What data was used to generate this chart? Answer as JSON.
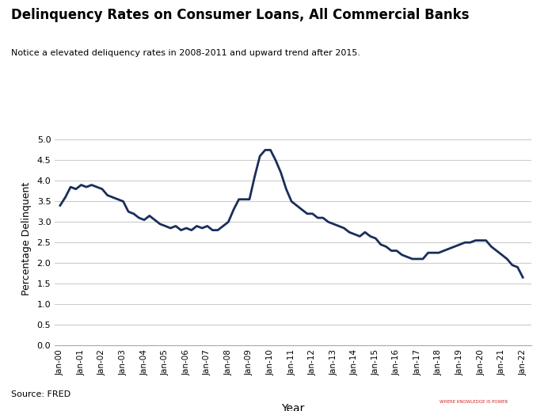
{
  "title": "Delinquency Rates on Consumer Loans, All Commercial Banks",
  "subtitle": "Notice a elevated deliquency rates in 2008-2011 and upward trend after 2015.",
  "xlabel": "Year",
  "ylabel": "Percentage Delinquent",
  "source": "Source: FRED",
  "line_color": "#1a2e5a",
  "line_width": 2.0,
  "background_color": "#ffffff",
  "plot_bg_color": "#ffffff",
  "ylim": [
    0,
    5.2
  ],
  "yticks": [
    0,
    0.5,
    1,
    1.5,
    2,
    2.5,
    3,
    3.5,
    4,
    4.5,
    5
  ],
  "xtick_labels": [
    "Jan-00",
    "Jan-01",
    "Jan-02",
    "Jan-03",
    "Jan-04",
    "Jan-05",
    "Jan-06",
    "Jan-07",
    "Jan-08",
    "Jan-09",
    "Jan-10",
    "Jan-11",
    "Jan-12",
    "Jan-13",
    "Jan-14",
    "Jan-15",
    "Jan-16",
    "Jan-17",
    "Jan-18",
    "Jan-19",
    "Jan-20",
    "Jan-21",
    "Jan-22"
  ],
  "data": {
    "dates": [
      "2000-01-01",
      "2000-04-01",
      "2000-07-01",
      "2000-10-01",
      "2001-01-01",
      "2001-04-01",
      "2001-07-01",
      "2001-10-01",
      "2002-01-01",
      "2002-04-01",
      "2002-07-01",
      "2002-10-01",
      "2003-01-01",
      "2003-04-01",
      "2003-07-01",
      "2003-10-01",
      "2004-01-01",
      "2004-04-01",
      "2004-07-01",
      "2004-10-01",
      "2005-01-01",
      "2005-04-01",
      "2005-07-01",
      "2005-10-01",
      "2006-01-01",
      "2006-04-01",
      "2006-07-01",
      "2006-10-01",
      "2007-01-01",
      "2007-04-01",
      "2007-07-01",
      "2007-10-01",
      "2008-01-01",
      "2008-04-01",
      "2008-07-01",
      "2008-10-01",
      "2009-01-01",
      "2009-04-01",
      "2009-07-01",
      "2009-10-01",
      "2010-01-01",
      "2010-04-01",
      "2010-07-01",
      "2010-10-01",
      "2011-01-01",
      "2011-04-01",
      "2011-07-01",
      "2011-10-01",
      "2012-01-01",
      "2012-04-01",
      "2012-07-01",
      "2012-10-01",
      "2013-01-01",
      "2013-04-01",
      "2013-07-01",
      "2013-10-01",
      "2014-01-01",
      "2014-04-01",
      "2014-07-01",
      "2014-10-01",
      "2015-01-01",
      "2015-04-01",
      "2015-07-01",
      "2015-10-01",
      "2016-01-01",
      "2016-04-01",
      "2016-07-01",
      "2016-10-01",
      "2017-01-01",
      "2017-04-01",
      "2017-07-01",
      "2017-10-01",
      "2018-01-01",
      "2018-04-01",
      "2018-07-01",
      "2018-10-01",
      "2019-01-01",
      "2019-04-01",
      "2019-07-01",
      "2019-10-01",
      "2020-01-01",
      "2020-04-01",
      "2020-07-01",
      "2020-10-01",
      "2021-01-01",
      "2021-04-01",
      "2021-07-01",
      "2021-10-01",
      "2022-01-01"
    ],
    "values": [
      3.4,
      3.6,
      3.85,
      3.8,
      3.9,
      3.85,
      3.9,
      3.85,
      3.8,
      3.65,
      3.6,
      3.55,
      3.5,
      3.25,
      3.2,
      3.1,
      3.05,
      3.15,
      3.05,
      2.95,
      2.9,
      2.85,
      2.9,
      2.8,
      2.85,
      2.8,
      2.9,
      2.85,
      2.9,
      2.8,
      2.8,
      2.9,
      3.0,
      3.3,
      3.55,
      3.55,
      3.55,
      4.1,
      4.6,
      4.75,
      4.75,
      4.5,
      4.2,
      3.8,
      3.5,
      3.4,
      3.3,
      3.2,
      3.2,
      3.1,
      3.1,
      3.0,
      2.95,
      2.9,
      2.85,
      2.75,
      2.7,
      2.65,
      2.75,
      2.65,
      2.6,
      2.45,
      2.4,
      2.3,
      2.3,
      2.2,
      2.15,
      2.1,
      2.1,
      2.1,
      2.25,
      2.25,
      2.25,
      2.3,
      2.35,
      2.4,
      2.45,
      2.5,
      2.5,
      2.55,
      2.55,
      2.55,
      2.4,
      2.3,
      2.2,
      2.1,
      1.95,
      1.9,
      1.65
    ]
  }
}
